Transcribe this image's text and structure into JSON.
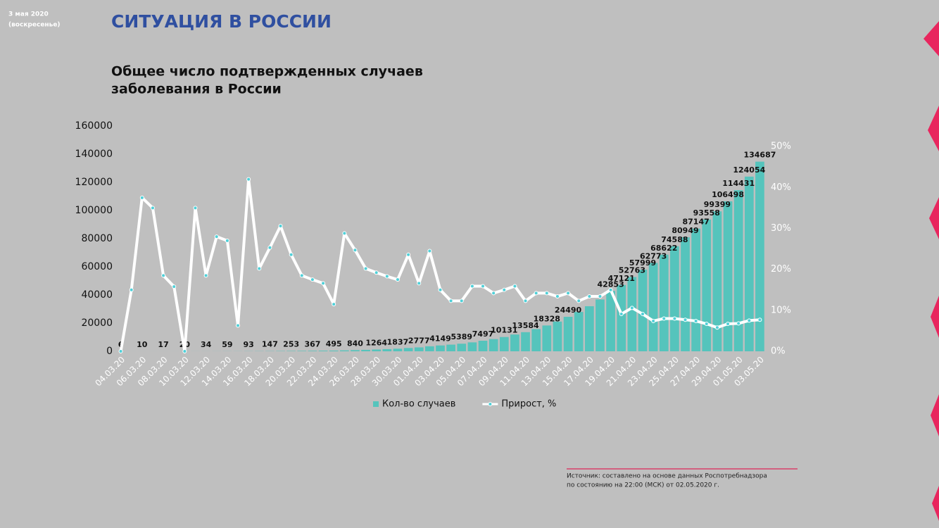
{
  "header": {
    "date": "3 мая 2020",
    "weekday": "(воскресенье)",
    "heading": "СИТУАЦИЯ В РОССИИ"
  },
  "chart_data": {
    "type": "bar",
    "title": [
      "Общее число подтвержденных случаев",
      "заболевания в России"
    ],
    "categories": [
      "04.03.20",
      null,
      "06.03.20",
      null,
      "08.03.20",
      null,
      "10.03.20",
      null,
      "12.03.20",
      null,
      "14.03.20",
      null,
      "16.03.20",
      null,
      "18.03.20",
      null,
      "20.03.20",
      null,
      "22.03.20",
      null,
      "24.03.20",
      null,
      "26.03.20",
      null,
      "28.03.20",
      null,
      "30.03.20",
      null,
      "01.04.20",
      null,
      "03.04.20",
      null,
      "05.04.20",
      null,
      "07.04.20",
      null,
      "09.04.20",
      null,
      "11.04.20",
      null,
      "13.04.20",
      null,
      "15.04.20",
      null,
      "17.04.20",
      null,
      "19.04.20",
      null,
      "21.04.20",
      null,
      "23.04.20",
      null,
      "25.04.20",
      null,
      "27.04.20",
      null,
      "29.04.20",
      null,
      "01.05.20",
      null,
      "03.05.20"
    ],
    "series": [
      {
        "name": "Кол-во случаев",
        "type": "bar",
        "color": "#55c4bc",
        "values": [
          6,
          8,
          10,
          14,
          17,
          17,
          20,
          28,
          34,
          45,
          59,
          63,
          93,
          114,
          147,
          199,
          253,
          306,
          367,
          438,
          495,
          658,
          840,
          1036,
          1264,
          1534,
          1837,
          2337,
          2777,
          3548,
          4149,
          4731,
          5389,
          6343,
          7497,
          8672,
          10131,
          11917,
          13584,
          15770,
          18328,
          21102,
          24490,
          27938,
          32008,
          36793,
          42853,
          47121,
          52763,
          57999,
          62773,
          68622,
          74588,
          80949,
          87147,
          93558,
          99399,
          106498,
          114431,
          124054,
          134687
        ],
        "value_labels": [
          "6",
          null,
          "10",
          null,
          "17",
          null,
          "20",
          null,
          "34",
          null,
          "59",
          null,
          "93",
          null,
          "147",
          null,
          "253",
          null,
          "367",
          null,
          "495",
          null,
          "840",
          null,
          "1264",
          null,
          "1837",
          null,
          "2777",
          null,
          "4149",
          null,
          "5389",
          null,
          "7497",
          null,
          "10131",
          null,
          "13584",
          null,
          "18328",
          null,
          "24490",
          null,
          null,
          null,
          "42853",
          "47121",
          "52763",
          "57999",
          "62773",
          "68622",
          "74588",
          "80949",
          "87147",
          "93558",
          "99399",
          "106498",
          "114431",
          "124054",
          "134687"
        ]
      },
      {
        "name": "Прирост, %",
        "type": "line",
        "axis": "y2",
        "color": "#ffffff",
        "marker_color": "#4fd0d8",
        "values": [
          0,
          15,
          37.5,
          35,
          18.5,
          15.8,
          0,
          35,
          18.5,
          28,
          27,
          6.3,
          42,
          20.2,
          25.3,
          30.6,
          23.6,
          18.5,
          17.5,
          16.6,
          11.5,
          28.8,
          24.7,
          20.2,
          19.2,
          18.3,
          17.5,
          23.6,
          16.6,
          24.5,
          15,
          12.3,
          12.3,
          15.9,
          15.9,
          14.2,
          15,
          15.9,
          12.3,
          14.2,
          14.2,
          13.4,
          14.2,
          12.3,
          13.4,
          13.4,
          15,
          9.1,
          10.6,
          9.1,
          7.4,
          8,
          8,
          7.7,
          7.4,
          6.7,
          5.8,
          6.7,
          6.8,
          7.5,
          7.7
        ]
      }
    ],
    "ylim": [
      0,
      160000
    ],
    "yticks": [
      0,
      20000,
      40000,
      60000,
      80000,
      100000,
      120000,
      140000,
      160000
    ],
    "y2lim": [
      0,
      55
    ],
    "y2ticks": [
      {
        "value": 0,
        "label": "0%"
      },
      {
        "value": 10,
        "label": "10%"
      },
      {
        "value": 20,
        "label": "20%"
      },
      {
        "value": 30,
        "label": "30%"
      },
      {
        "value": 40,
        "label": "40%"
      },
      {
        "value": 50,
        "label": "50%"
      }
    ],
    "legend": "bottom"
  },
  "source": [
    "Источник: составлено на основе данных  Роспотребнадзора",
    "по состоянию на 22:00 (МСК) от 02.05.2020 г."
  ]
}
